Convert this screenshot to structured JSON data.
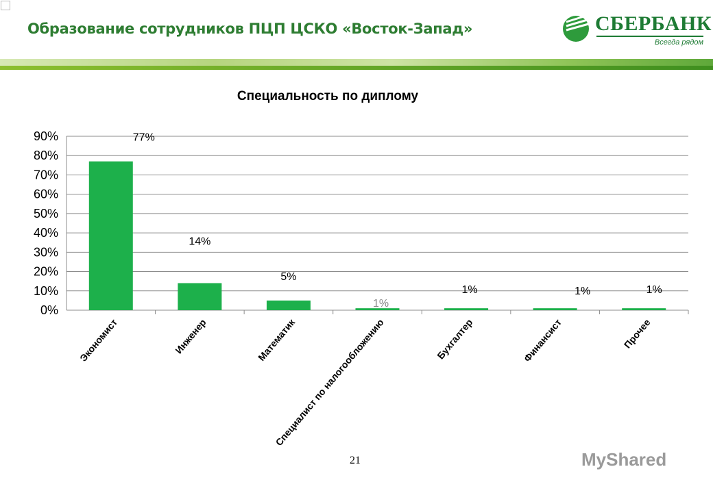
{
  "slide": {
    "title": "Образование сотрудников ПЦП ЦСКО «Восток-Запад»",
    "page_number": "21"
  },
  "logo": {
    "name": "СБЕРБАНК",
    "slogan": "Всегда рядом"
  },
  "watermark": "MyShared",
  "chart_data": {
    "type": "bar",
    "title": "Специальность по диплому",
    "categories": [
      "Экономист",
      "Инженер",
      "Математик",
      "Специалист по налогообложению",
      "Бухгалтер",
      "Финансист",
      "Прочее"
    ],
    "values": [
      77,
      14,
      5,
      1,
      1,
      1,
      1
    ],
    "data_labels": [
      "77%",
      "14%",
      "5%",
      "1%",
      "1%",
      "1%",
      "1%"
    ],
    "ylim": [
      0,
      90
    ],
    "yticks": [
      "0%",
      "10%",
      "20%",
      "30%",
      "40%",
      "50%",
      "60%",
      "70%",
      "80%",
      "90%"
    ],
    "grid": true,
    "bar_color": "#1db04b",
    "xlabel": "",
    "ylabel": ""
  }
}
